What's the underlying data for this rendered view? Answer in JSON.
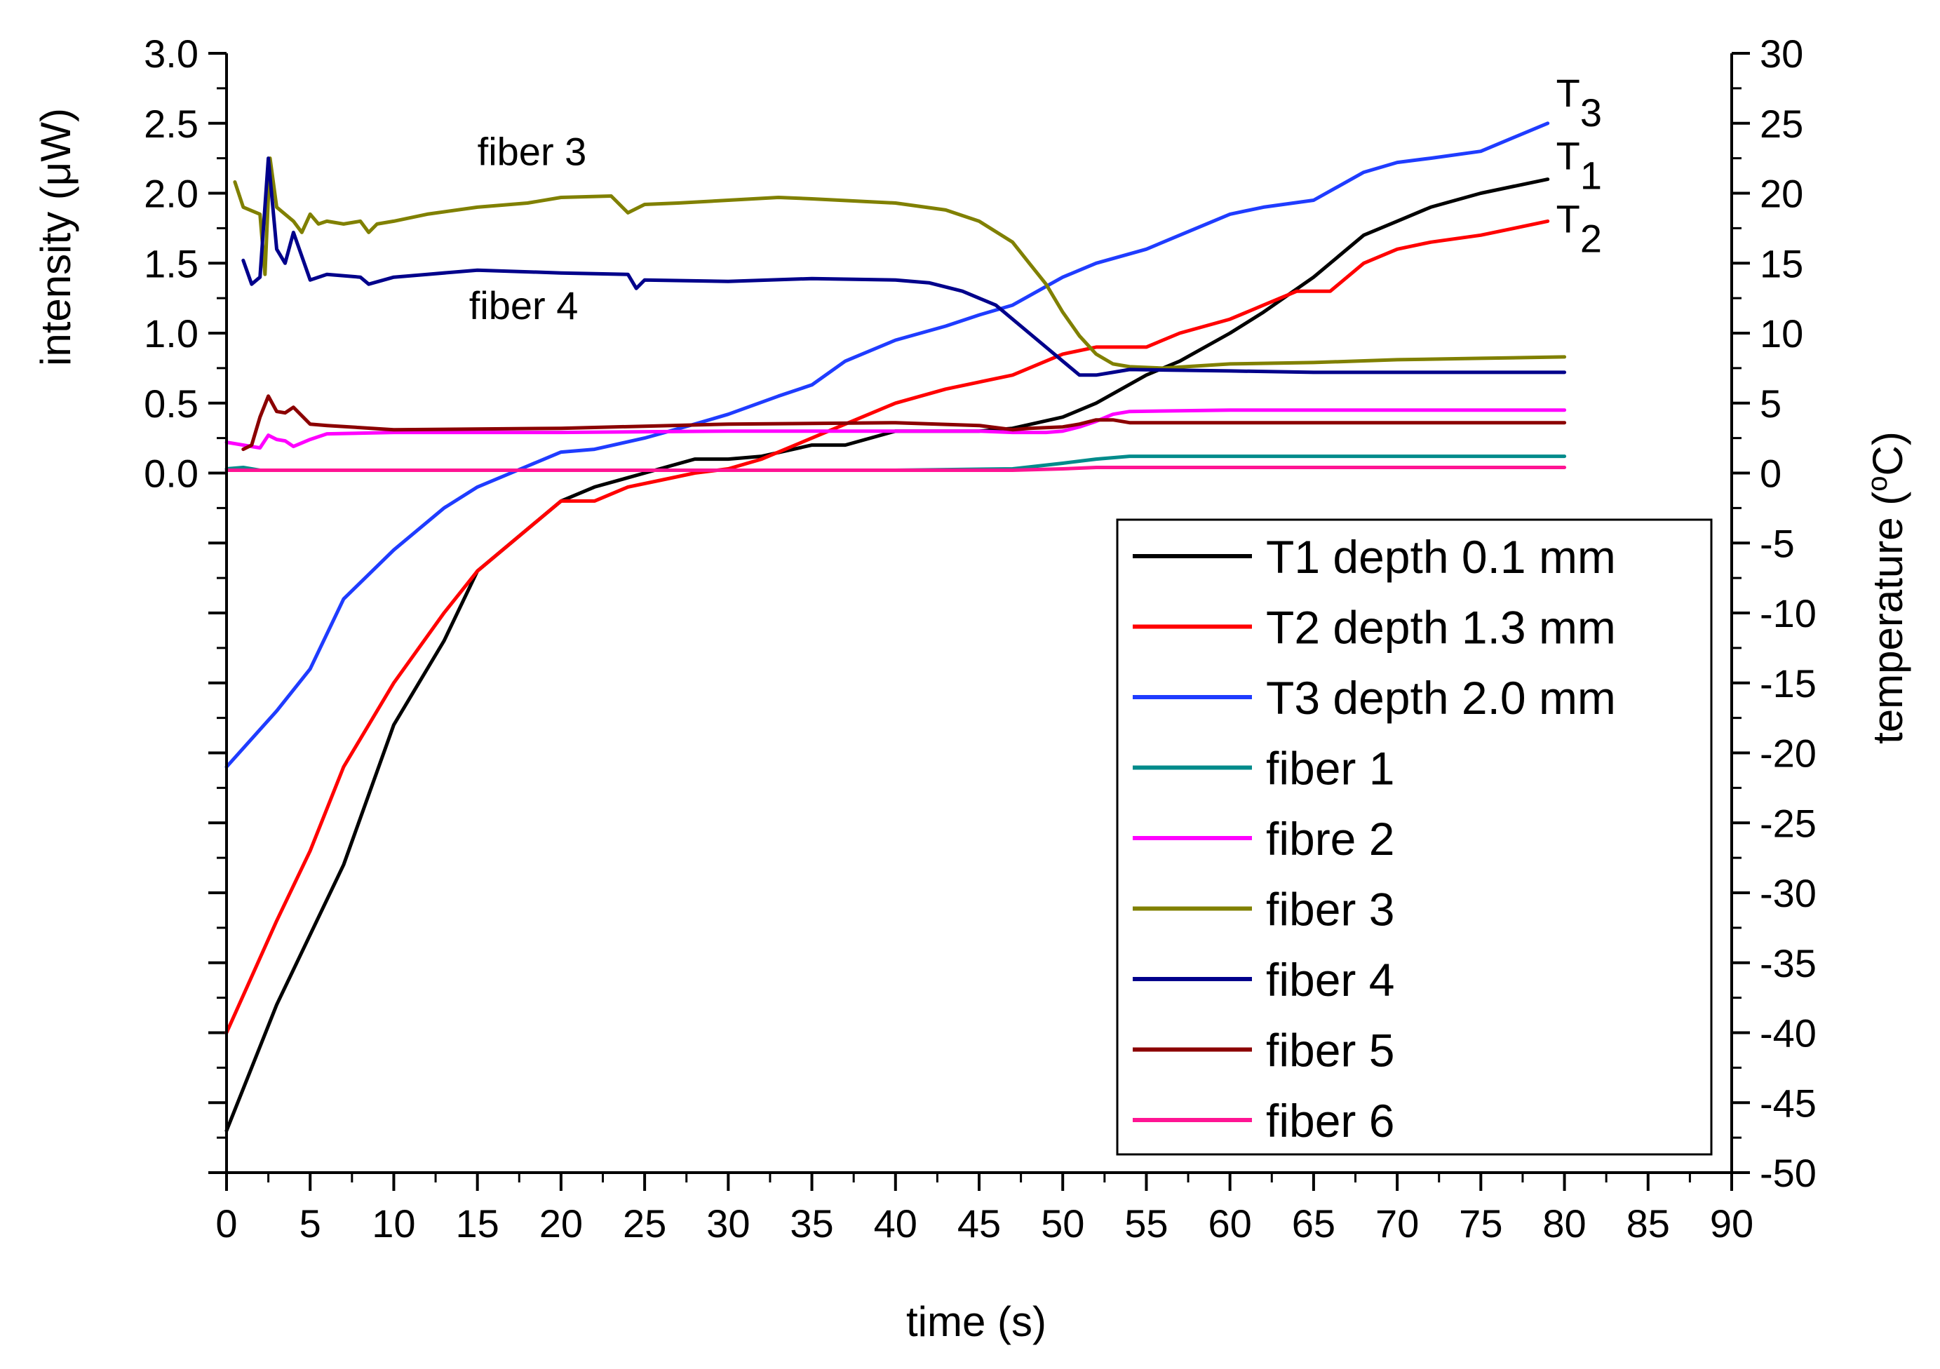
{
  "chart_data": {
    "type": "line",
    "xlabel": "time (s)",
    "ylabel_left": "intensity (μW)",
    "ylabel_right": "temperature (°C)",
    "ylabel_right_parts": {
      "pre": "temperature (",
      "sup": "o",
      "post": "C)"
    },
    "xlim": [
      0,
      90
    ],
    "ylim_left": [
      -5.0,
      3.0
    ],
    "ylim_right": [
      -50,
      30
    ],
    "x_ticks": [
      "0",
      "5",
      "10",
      "15",
      "20",
      "25",
      "30",
      "35",
      "40",
      "45",
      "50",
      "55",
      "60",
      "65",
      "70",
      "75",
      "80",
      "85",
      "90"
    ],
    "y_left_ticks": [
      "0.0",
      "0.5",
      "1.0",
      "1.5",
      "2.0",
      "2.5",
      "3.0"
    ],
    "y_right_ticks": [
      "-50",
      "-45",
      "-40",
      "-35",
      "-30",
      "-25",
      "-20",
      "-15",
      "-10",
      "-5",
      "0",
      "5",
      "10",
      "15",
      "20",
      "25",
      "30"
    ],
    "legend": {
      "position": "lower-right",
      "entries": [
        {
          "label": "T1 depth 0.1 mm",
          "color": "#000000"
        },
        {
          "label": "T2 depth 1.3 mm",
          "color": "#ff0000"
        },
        {
          "label": "T3 depth 2.0 mm",
          "color": "#1f3cff"
        },
        {
          "label": "fiber 1",
          "color": "#008b8b"
        },
        {
          "label": "fibre 2",
          "color": "#ff00ff"
        },
        {
          "label": "fiber 3",
          "color": "#808000"
        },
        {
          "label": "fiber 4",
          "color": "#00008b"
        },
        {
          "label": "fiber 5",
          "color": "#8b0000"
        },
        {
          "label": "fiber 6",
          "color": "#ff1493"
        }
      ]
    },
    "annotations": [
      {
        "text": "fiber 3",
        "x": 15,
        "y": 2.2,
        "axis": "left"
      },
      {
        "text": "fiber 4",
        "x": 14.5,
        "y": 1.1,
        "axis": "left"
      },
      {
        "main": "T",
        "sub": "3",
        "x": 79.5,
        "y": 25.5,
        "axis": "right"
      },
      {
        "main": "T",
        "sub": "1",
        "x": 79.5,
        "y": 21,
        "axis": "right"
      },
      {
        "main": "T",
        "sub": "2",
        "x": 79.5,
        "y": 16.5,
        "axis": "right"
      }
    ],
    "series": [
      {
        "name": "T1 depth 0.1 mm",
        "axis": "right",
        "color": "#000000",
        "x": [
          0,
          3,
          5,
          7,
          10,
          13,
          15,
          18,
          20,
          22,
          25,
          28,
          30,
          32,
          35,
          37,
          40,
          43,
          45,
          47,
          50,
          52,
          55,
          57,
          60,
          62,
          65,
          68,
          70,
          72,
          75,
          77,
          79
        ],
        "y": [
          -47,
          -38,
          -33,
          -28,
          -18,
          -12,
          -7,
          -4,
          -2,
          -1,
          0,
          1,
          1,
          1.2,
          2,
          2,
          3,
          3,
          3,
          3.2,
          4,
          5,
          7,
          8,
          10,
          11.5,
          14,
          17,
          18,
          19,
          20,
          20.5,
          21
        ]
      },
      {
        "name": "T2 depth 1.3 mm",
        "axis": "right",
        "color": "#ff0000",
        "x": [
          0,
          3,
          5,
          7,
          10,
          13,
          15,
          18,
          20,
          22,
          24,
          26,
          28,
          30,
          32,
          35,
          38,
          40,
          43,
          45,
          47,
          50,
          52,
          55,
          57,
          60,
          62,
          64,
          66,
          68,
          70,
          72,
          75,
          77,
          79
        ],
        "y": [
          -40,
          -32,
          -27,
          -21,
          -15,
          -10,
          -7,
          -4,
          -2,
          -2,
          -1,
          -0.5,
          0,
          0.3,
          1,
          2.5,
          4,
          5,
          6,
          6.5,
          7,
          8.5,
          9,
          9,
          10,
          11,
          12,
          13,
          13,
          15,
          16,
          16.5,
          17,
          17.5,
          18
        ]
      },
      {
        "name": "T3 depth 2.0 mm",
        "axis": "right",
        "color": "#1f3cff",
        "x": [
          0,
          3,
          5,
          7,
          10,
          13,
          15,
          18,
          20,
          22,
          25,
          28,
          30,
          33,
          35,
          37,
          40,
          43,
          45,
          47,
          50,
          52,
          55,
          57,
          60,
          62,
          65,
          68,
          70,
          72,
          75,
          77,
          79
        ],
        "y": [
          -21,
          -17,
          -14,
          -9,
          -5.5,
          -2.5,
          -1,
          0.5,
          1.5,
          1.7,
          2.5,
          3.5,
          4.2,
          5.5,
          6.3,
          8,
          9.5,
          10.5,
          11.3,
          12,
          14,
          15,
          16,
          17,
          18.5,
          19,
          19.5,
          21.5,
          22.2,
          22.5,
          23,
          24,
          25
        ]
      },
      {
        "name": "fiber 1",
        "axis": "left",
        "color": "#008b8b",
        "x": [
          0,
          1,
          2,
          5,
          10,
          20,
          30,
          40,
          47,
          50,
          52,
          54,
          60,
          70,
          80
        ],
        "y": [
          0.03,
          0.04,
          0.02,
          0.02,
          0.02,
          0.02,
          0.02,
          0.02,
          0.03,
          0.07,
          0.1,
          0.12,
          0.12,
          0.12,
          0.12
        ]
      },
      {
        "name": "fibre 2",
        "axis": "left",
        "color": "#ff00ff",
        "x": [
          0,
          1,
          2,
          2.5,
          3,
          3.5,
          4,
          5,
          6,
          10,
          20,
          30,
          40,
          45,
          47,
          49,
          50,
          51,
          52,
          53,
          54,
          60,
          70,
          80
        ],
        "y": [
          0.22,
          0.2,
          0.18,
          0.27,
          0.24,
          0.23,
          0.19,
          0.24,
          0.28,
          0.29,
          0.29,
          0.3,
          0.3,
          0.3,
          0.29,
          0.29,
          0.3,
          0.33,
          0.37,
          0.42,
          0.44,
          0.45,
          0.45,
          0.45
        ]
      },
      {
        "name": "fiber 3",
        "axis": "left",
        "color": "#808000",
        "x": [
          0.5,
          1,
          2,
          2.3,
          2.6,
          3,
          4,
          4.5,
          5,
          5.5,
          6,
          7,
          8,
          8.5,
          9,
          10,
          12,
          15,
          18,
          20,
          23,
          24,
          25,
          27,
          30,
          33,
          35,
          40,
          43,
          45,
          47,
          48,
          49,
          50,
          51,
          52,
          53,
          54,
          56,
          60,
          65,
          70,
          75,
          80
        ],
        "y": [
          2.08,
          1.9,
          1.85,
          1.42,
          2.25,
          1.9,
          1.8,
          1.72,
          1.85,
          1.78,
          1.8,
          1.78,
          1.8,
          1.72,
          1.78,
          1.8,
          1.85,
          1.9,
          1.93,
          1.97,
          1.98,
          1.86,
          1.92,
          1.93,
          1.95,
          1.97,
          1.96,
          1.93,
          1.88,
          1.8,
          1.65,
          1.5,
          1.35,
          1.15,
          0.98,
          0.85,
          0.78,
          0.76,
          0.75,
          0.78,
          0.79,
          0.81,
          0.82,
          0.83
        ]
      },
      {
        "name": "fiber 4",
        "axis": "left",
        "color": "#00008b",
        "x": [
          1,
          1.5,
          2,
          2.5,
          3,
          3.5,
          4,
          4.5,
          5,
          6,
          8,
          8.5,
          10,
          12,
          15,
          20,
          24,
          24.5,
          25,
          30,
          35,
          40,
          42,
          44,
          46,
          48,
          50,
          51,
          52,
          53,
          54,
          60,
          65,
          70,
          75,
          80
        ],
        "y": [
          1.52,
          1.35,
          1.4,
          2.25,
          1.6,
          1.5,
          1.72,
          1.55,
          1.38,
          1.42,
          1.4,
          1.35,
          1.4,
          1.42,
          1.45,
          1.43,
          1.42,
          1.32,
          1.38,
          1.37,
          1.39,
          1.38,
          1.36,
          1.3,
          1.2,
          1.0,
          0.8,
          0.7,
          0.7,
          0.72,
          0.74,
          0.73,
          0.72,
          0.72,
          0.72,
          0.72
        ]
      },
      {
        "name": "fiber 5",
        "axis": "left",
        "color": "#8b0000",
        "x": [
          1,
          1.5,
          2,
          2.5,
          3,
          3.5,
          4,
          5,
          6,
          10,
          20,
          30,
          40,
          45,
          47,
          48,
          50,
          51,
          52,
          53,
          54,
          60,
          70,
          80
        ],
        "y": [
          0.17,
          0.2,
          0.4,
          0.55,
          0.44,
          0.43,
          0.47,
          0.35,
          0.34,
          0.31,
          0.32,
          0.35,
          0.36,
          0.34,
          0.31,
          0.32,
          0.33,
          0.35,
          0.38,
          0.38,
          0.36,
          0.36,
          0.36,
          0.36
        ]
      },
      {
        "name": "fiber 6",
        "axis": "left",
        "color": "#ff1493",
        "x": [
          0,
          5,
          10,
          20,
          30,
          40,
          47,
          50,
          52,
          54,
          60,
          70,
          80
        ],
        "y": [
          0.02,
          0.02,
          0.02,
          0.02,
          0.02,
          0.02,
          0.02,
          0.03,
          0.04,
          0.04,
          0.04,
          0.04,
          0.04
        ]
      }
    ]
  }
}
